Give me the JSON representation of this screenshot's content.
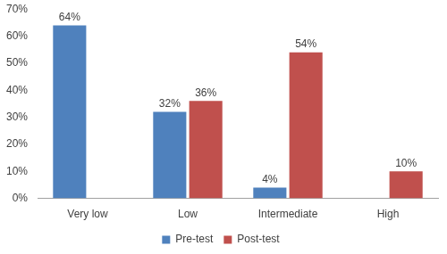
{
  "chart_data": {
    "type": "bar",
    "categories": [
      "Very low",
      "Low",
      "Intermediate",
      "High"
    ],
    "series": [
      {
        "name": "Pre-test",
        "color": "#4f81bd",
        "values": [
          64,
          32,
          4,
          null
        ],
        "value_labels": [
          "64%",
          "32%",
          "4%",
          null
        ]
      },
      {
        "name": "Post-test",
        "color": "#c0504d",
        "values": [
          null,
          36,
          54,
          10
        ],
        "value_labels": [
          null,
          "36%",
          "54%",
          "10%"
        ]
      }
    ],
    "ylim": [
      0,
      70
    ],
    "yticks": [
      {
        "value": 0,
        "label": "0%"
      },
      {
        "value": 10,
        "label": "10%"
      },
      {
        "value": 20,
        "label": "20%"
      },
      {
        "value": 30,
        "label": "30%"
      },
      {
        "value": 40,
        "label": "40%"
      },
      {
        "value": 50,
        "label": "50%"
      },
      {
        "value": 60,
        "label": "60%"
      },
      {
        "value": 70,
        "label": "70%"
      }
    ],
    "grid": false,
    "legend": "bottom",
    "data_labels": true
  }
}
